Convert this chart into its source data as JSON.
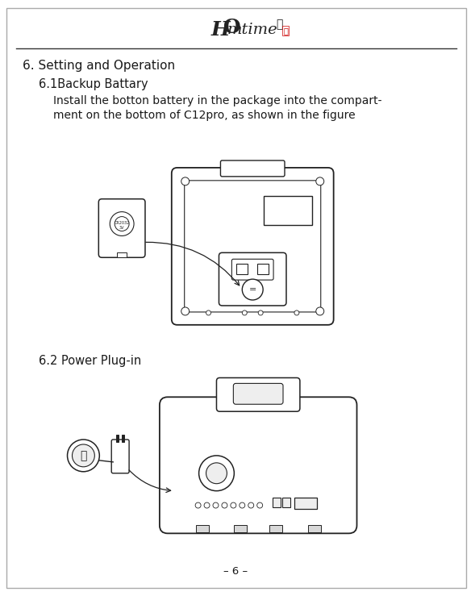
{
  "bg_color": "#ffffff",
  "border_color": "#aaaaaa",
  "text_color": "#1a1a1a",
  "section_title": "6. Setting and Operation",
  "subsection1": "6.1Backup Battary",
  "body1_line1": "Install the botton battery in the package into the compart-",
  "body1_line2": "ment on the bottom of C12pro, as shown in the figure",
  "subsection2": "6.2 Power Plug-in",
  "page_number": "– 6 –",
  "line_color": "#222222",
  "gray_fill": "#d8d8d8",
  "light_gray": "#eeeeee",
  "red_color": "#cc0000"
}
